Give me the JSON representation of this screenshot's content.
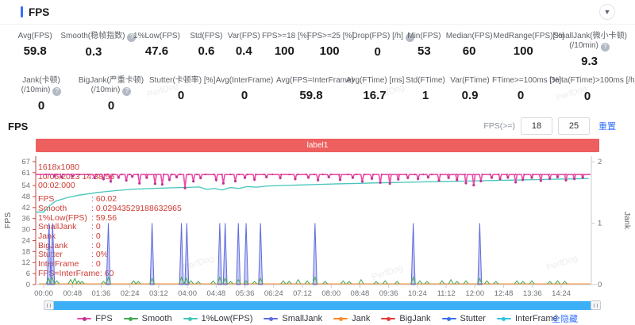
{
  "header": {
    "title": "FPS"
  },
  "metrics_row1": [
    {
      "label": "Avg(FPS)",
      "value": "59.8"
    },
    {
      "label": "Smooth(稳帧指数)",
      "value": "0.3",
      "info": true
    },
    {
      "label": "1%Low(FPS)",
      "value": "47.6"
    },
    {
      "label": "Std(FPS)",
      "value": "0.6"
    },
    {
      "label": "Var(FPS)",
      "value": "0.4"
    },
    {
      "label": "FPS>=18 [%]",
      "value": "100"
    },
    {
      "label": "FPS>=25 [%]",
      "value": "100"
    },
    {
      "label": "Drop(FPS) [/h]",
      "value": "0",
      "info": true
    },
    {
      "label": "Min(FPS)",
      "value": "53"
    },
    {
      "label": "Median(FPS)",
      "value": "60"
    },
    {
      "label": "MedRange(FPS)[%]",
      "value": "100"
    },
    {
      "label": "SmallJank(微小卡顿)",
      "label2": "(/10min)",
      "value": "9.3",
      "info": true
    }
  ],
  "metrics_row2": [
    {
      "label": "Jank(卡顿)",
      "label2": "(/10min)",
      "value": "0",
      "info": true
    },
    {
      "label": "BigJank(严重卡顿)",
      "label2": "(/10min)",
      "value": "0",
      "info": true
    },
    {
      "label": "Stutter(卡顿率) [%]",
      "value": "0"
    },
    {
      "label": "Avg(InterFrame)",
      "value": "0"
    },
    {
      "label": "Avg(FPS=InterFrame)",
      "value": "59.8"
    },
    {
      "label": "Avg(FTime) [ms]",
      "value": "16.7"
    },
    {
      "label": "Std(FTime)",
      "value": "1"
    },
    {
      "label": "Var(FTime)",
      "value": "0.9"
    },
    {
      "label": "FTime>=100ms [%]",
      "value": "0"
    },
    {
      "label": "Delta(FTime)>100ms [/h]",
      "value": "0",
      "info": true
    }
  ],
  "section": {
    "title": "FPS",
    "fps_filter_label": "FPS(>=)",
    "threshold1": "18",
    "threshold2": "25",
    "reset_label": "重置"
  },
  "tooltip": {
    "resolution": "1618x1080",
    "datetime": "10/05/2023 14:38:56",
    "time": "00:02:000",
    "rows": [
      {
        "label": "FPS",
        "value": "60.02"
      },
      {
        "label": "Smooth",
        "value": "0.02943529188632965"
      },
      {
        "label": "1%Low(FPS)",
        "value": "59.56"
      },
      {
        "label": "SmallJank",
        "value": "0"
      },
      {
        "label": "Jank",
        "value": "0"
      },
      {
        "label": "BigJank",
        "value": "0"
      },
      {
        "label": "Stutter",
        "value": "0%"
      },
      {
        "label": "InterFrame",
        "value": "0"
      },
      {
        "label": "FPS=InterFrame",
        "value": "60"
      }
    ]
  },
  "chart_data": {
    "type": "line",
    "title": "label1",
    "x_axis": {
      "unit": "mm:ss",
      "tick_interval_s": 48,
      "t_max_s": 914,
      "ticks": [
        "00:00",
        "00:48",
        "01:36",
        "02:24",
        "03:12",
        "04:00",
        "04:48",
        "05:36",
        "06:24",
        "07:12",
        "08:00",
        "08:48",
        "09:36",
        "10:24",
        "11:12",
        "12:00",
        "12:48",
        "13:36",
        "14:24"
      ]
    },
    "y_left": {
      "title": "FPS",
      "ticks": [
        67,
        61,
        54,
        48,
        42,
        36,
        30,
        24,
        18,
        12,
        6,
        0
      ],
      "max": 70,
      "axis_color": "#bf4743"
    },
    "y_right": {
      "title": "Jank",
      "ticks": [
        2,
        1,
        0
      ],
      "max": 2.09,
      "axis_color": "#c9ccd1"
    },
    "legend_position": "bottom",
    "grid": false,
    "series": [
      {
        "name": "InterFrame",
        "color": "#2fc4de",
        "axis": "right",
        "render": "flat",
        "value": 0
      },
      {
        "name": "Stutter",
        "color": "#3d6ef2",
        "axis": "right",
        "render": "flat",
        "value": 0
      },
      {
        "name": "BigJank",
        "color": "#e23c39",
        "axis": "right",
        "render": "flat",
        "value": 0
      },
      {
        "name": "Jank",
        "color": "#ff8a2a",
        "axis": "right",
        "render": "flat",
        "value": 0
      },
      {
        "name": "SmallJank",
        "color": "#5f6cdb",
        "fill": "rgba(98,108,226,0.35)",
        "axis": "right",
        "render": "spikes-filled",
        "points": [
          [
            9,
            1
          ],
          [
            15,
            1
          ],
          [
            108,
            1
          ],
          [
            181,
            1
          ],
          [
            230,
            1
          ],
          [
            239,
            1
          ],
          [
            294,
            1
          ],
          [
            303,
            1
          ],
          [
            325,
            1
          ],
          [
            338,
            1
          ],
          [
            362,
            1
          ],
          [
            453,
            1
          ],
          [
            617,
            1
          ],
          [
            728,
            1
          ]
        ]
      },
      {
        "name": "Smooth",
        "color": "#41ab52",
        "axis": "right",
        "render": "spikes",
        "points": [
          [
            8,
            0.1
          ],
          [
            14,
            0.12
          ],
          [
            22,
            0.06
          ],
          [
            45,
            0.08
          ],
          [
            52,
            0.1
          ],
          [
            58,
            0.06
          ],
          [
            64,
            0.05
          ],
          [
            100,
            0.05
          ],
          [
            108,
            0.12
          ],
          [
            150,
            0.06
          ],
          [
            158,
            0.05
          ],
          [
            181,
            0.1
          ],
          [
            230,
            0.12
          ],
          [
            238,
            0.1
          ],
          [
            246,
            0.06
          ],
          [
            258,
            0.05
          ],
          [
            283,
            0.06
          ],
          [
            294,
            0.12
          ],
          [
            303,
            0.1
          ],
          [
            312,
            0.05
          ],
          [
            325,
            0.08
          ],
          [
            338,
            0.06
          ],
          [
            352,
            0.05
          ],
          [
            362,
            0.1
          ],
          [
            400,
            0.06
          ],
          [
            410,
            0.05
          ],
          [
            425,
            0.08
          ],
          [
            440,
            0.06
          ],
          [
            453,
            0.12
          ],
          [
            470,
            0.05
          ],
          [
            500,
            0.06
          ],
          [
            510,
            0.05
          ],
          [
            530,
            0.08
          ],
          [
            555,
            0.05
          ],
          [
            570,
            0.06
          ],
          [
            590,
            0.05
          ],
          [
            617,
            0.12
          ],
          [
            628,
            0.06
          ],
          [
            640,
            0.05
          ],
          [
            665,
            0.06
          ],
          [
            680,
            0.08
          ],
          [
            690,
            0.05
          ],
          [
            705,
            0.06
          ],
          [
            728,
            0.1
          ],
          [
            740,
            0.06
          ],
          [
            755,
            0.05
          ],
          [
            790,
            0.06
          ],
          [
            800,
            0.05
          ],
          [
            815,
            0.06
          ],
          [
            845,
            0.05
          ],
          [
            858,
            0.06
          ],
          [
            870,
            0.05
          ]
        ]
      },
      {
        "name": "1%Low(FPS)",
        "color": "#45c5bb",
        "axis": "left",
        "render": "line",
        "points": [
          [
            0,
            39.5
          ],
          [
            10,
            43
          ],
          [
            20,
            45.5
          ],
          [
            40,
            47.5
          ],
          [
            60,
            48.8
          ],
          [
            90,
            50.2
          ],
          [
            120,
            51.2
          ],
          [
            150,
            52
          ],
          [
            180,
            52.4
          ],
          [
            210,
            52.7
          ],
          [
            240,
            53
          ],
          [
            260,
            53.2
          ],
          [
            272,
            51.9
          ],
          [
            285,
            52.4
          ],
          [
            298,
            51.6
          ],
          [
            312,
            52.9
          ],
          [
            326,
            52.4
          ],
          [
            340,
            53.4
          ],
          [
            356,
            53.1
          ],
          [
            372,
            53.7
          ],
          [
            400,
            54
          ],
          [
            430,
            54.3
          ],
          [
            460,
            54.6
          ],
          [
            490,
            54.9
          ],
          [
            520,
            55.1
          ],
          [
            550,
            55.4
          ],
          [
            580,
            55.6
          ],
          [
            610,
            55.8
          ],
          [
            640,
            56
          ],
          [
            670,
            56.2
          ],
          [
            700,
            56.4
          ],
          [
            730,
            56.6
          ],
          [
            760,
            56.8
          ],
          [
            790,
            57
          ],
          [
            820,
            57.2
          ],
          [
            850,
            57.4
          ],
          [
            880,
            57.6
          ],
          [
            910,
            57.8
          ]
        ]
      },
      {
        "name": "FPS",
        "color": "#ec4ca8",
        "marker_color": "#c0348f",
        "axis": "left",
        "render": "baseline-dips",
        "baseline": 60,
        "dips": [
          [
            18,
            59
          ],
          [
            30,
            58.6
          ],
          [
            48,
            59
          ],
          [
            85,
            58.2
          ],
          [
            100,
            57.6
          ],
          [
            112,
            56.2
          ],
          [
            125,
            58.4
          ],
          [
            138,
            56.8
          ],
          [
            148,
            58.9
          ],
          [
            160,
            55.2
          ],
          [
            172,
            58.3
          ],
          [
            186,
            55
          ],
          [
            198,
            54.6
          ],
          [
            210,
            57.2
          ],
          [
            222,
            58.6
          ],
          [
            236,
            52.6
          ],
          [
            250,
            56.3
          ],
          [
            262,
            58.1
          ],
          [
            288,
            57.1
          ],
          [
            300,
            55.2
          ],
          [
            320,
            56.4
          ],
          [
            336,
            58.2
          ],
          [
            352,
            57.3
          ],
          [
            372,
            58.6
          ],
          [
            395,
            58.1
          ],
          [
            420,
            57.6
          ],
          [
            442,
            58.4
          ],
          [
            458,
            57
          ],
          [
            476,
            58.6
          ],
          [
            495,
            57.2
          ],
          [
            516,
            58.3
          ],
          [
            532,
            56.2
          ],
          [
            548,
            57.8
          ],
          [
            562,
            55.6
          ],
          [
            578,
            55.1
          ],
          [
            592,
            57.4
          ],
          [
            608,
            58.2
          ],
          [
            625,
            57.7
          ],
          [
            642,
            58.5
          ],
          [
            660,
            56.7
          ],
          [
            676,
            58.2
          ],
          [
            690,
            57.1
          ],
          [
            705,
            55.3
          ],
          [
            718,
            54.2
          ],
          [
            730,
            56.4
          ],
          [
            748,
            58.3
          ],
          [
            762,
            57.6
          ],
          [
            775,
            58.4
          ],
          [
            788,
            55.8
          ],
          [
            800,
            57.2
          ],
          [
            815,
            58.3
          ],
          [
            830,
            56.6
          ],
          [
            845,
            57.8
          ],
          [
            858,
            58.6
          ],
          [
            872,
            56.9
          ],
          [
            886,
            57.7
          ],
          [
            900,
            58.4
          ]
        ]
      }
    ]
  },
  "legend": {
    "items": [
      {
        "label": "FPS",
        "color": "#ec4ca8",
        "dot": "#c0348f"
      },
      {
        "label": "Smooth",
        "color": "#41ab52"
      },
      {
        "label": "1%Low(FPS)",
        "color": "#45c5bb"
      },
      {
        "label": "SmallJank",
        "color": "#5f6cdb"
      },
      {
        "label": "Jank",
        "color": "#ff8a2a"
      },
      {
        "label": "BigJank",
        "color": "#e23c39"
      },
      {
        "label": "Stutter",
        "color": "#3d6ef2"
      },
      {
        "label": "InterFrame",
        "color": "#2fc4de"
      }
    ],
    "hide_all": "全隐藏"
  },
  "watermark": "PerfDog",
  "colors": {
    "accent": "#3370ff",
    "banner": "#ee5f5f",
    "scrollbar": "#3caff6",
    "tooltip_text": "#cf3b34"
  }
}
